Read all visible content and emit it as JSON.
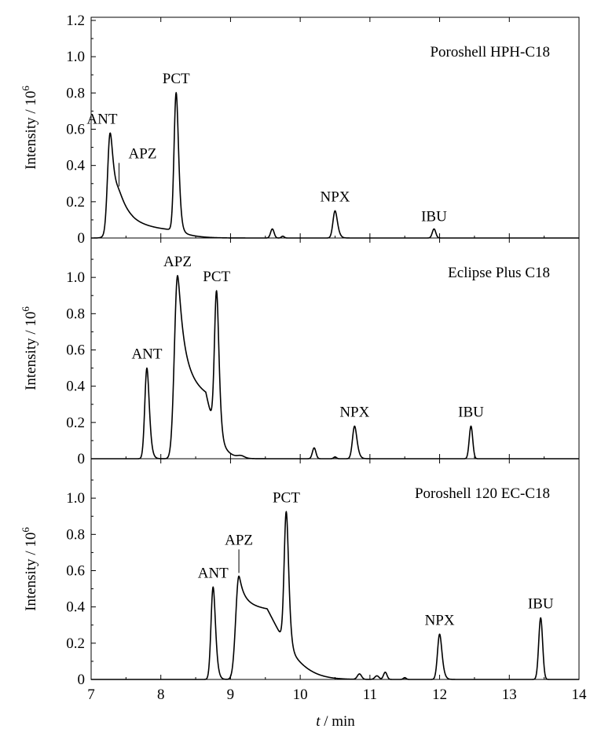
{
  "chart_data": {
    "type": "line",
    "xlabel_italic": "t",
    "xlabel_rest": " / min",
    "ylabel_main": "Intensity / 10",
    "ylabel_exp": "6",
    "xlim": [
      7,
      14
    ],
    "ylim": [
      0,
      1.2
    ],
    "xticks": [
      "7",
      "8",
      "9",
      "10",
      "11",
      "12",
      "13",
      "14"
    ],
    "yticks": [
      "0",
      "0.2",
      "0.4",
      "0.6",
      "0.8",
      "1.0",
      "1.2"
    ],
    "panels": [
      {
        "title": "Poroshell HPH-C18",
        "peaks": [
          {
            "label": "ANT",
            "t": 7.27,
            "h": 0.5,
            "w": 0.035,
            "tail": 0.02
          },
          {
            "label": "APZ",
            "t": 7.4,
            "h": 0.22,
            "w": 0.09,
            "tail": 0.12
          },
          {
            "label": "PCT",
            "t": 8.22,
            "h": 0.76,
            "w": 0.03,
            "tail": 0.01
          },
          {
            "label": "",
            "t": 9.6,
            "h": 0.05,
            "w": 0.025,
            "tail": 0.0
          },
          {
            "label": "",
            "t": 9.75,
            "h": 0.01,
            "w": 0.02,
            "tail": 0.0
          },
          {
            "label": "NPX",
            "t": 10.5,
            "h": 0.15,
            "w": 0.03,
            "tail": 0.01
          },
          {
            "label": "IBU",
            "t": 11.92,
            "h": 0.05,
            "w": 0.025,
            "tail": 0.0
          }
        ]
      },
      {
        "title": "Eclipse Plus C18",
        "peaks": [
          {
            "label": "ANT",
            "t": 7.8,
            "h": 0.5,
            "w": 0.03,
            "tail": 0.01
          },
          {
            "label": "APZ",
            "t": 8.24,
            "h": 1.01,
            "w": 0.045,
            "tail": 0.08
          },
          {
            "label": "PCT",
            "t": 8.8,
            "h": 0.78,
            "w": 0.03,
            "tail": 0.01
          },
          {
            "label": "",
            "t": 9.15,
            "h": 0.012,
            "w": 0.05,
            "tail": 0.0
          },
          {
            "label": "",
            "t": 10.2,
            "h": 0.06,
            "w": 0.025,
            "tail": 0.0
          },
          {
            "label": "",
            "t": 10.5,
            "h": 0.01,
            "w": 0.02,
            "tail": 0.0
          },
          {
            "label": "NPX",
            "t": 10.78,
            "h": 0.18,
            "w": 0.03,
            "tail": 0.01
          },
          {
            "label": "IBU",
            "t": 12.45,
            "h": 0.18,
            "w": 0.025,
            "tail": 0.0
          }
        ]
      },
      {
        "title": "Poroshell 120 EC-C18",
        "peaks": [
          {
            "label": "ANT",
            "t": 8.75,
            "h": 0.51,
            "w": 0.03,
            "tail": 0.01
          },
          {
            "label": "APZ",
            "t": 9.12,
            "h": 0.57,
            "w": 0.045,
            "tail": 0.14
          },
          {
            "label": "PCT",
            "t": 9.8,
            "h": 0.73,
            "w": 0.03,
            "tail": 0.01
          },
          {
            "label": "",
            "t": 10.85,
            "h": 0.03,
            "w": 0.03,
            "tail": 0.0
          },
          {
            "label": "",
            "t": 11.1,
            "h": 0.02,
            "w": 0.03,
            "tail": 0.0
          },
          {
            "label": "",
            "t": 11.22,
            "h": 0.04,
            "w": 0.025,
            "tail": 0.0
          },
          {
            "label": "",
            "t": 11.5,
            "h": 0.01,
            "w": 0.02,
            "tail": 0.0
          },
          {
            "label": "NPX",
            "t": 12.0,
            "h": 0.25,
            "w": 0.03,
            "tail": 0.01
          },
          {
            "label": "IBU",
            "t": 13.45,
            "h": 0.34,
            "w": 0.028,
            "tail": 0.0
          }
        ]
      }
    ]
  }
}
